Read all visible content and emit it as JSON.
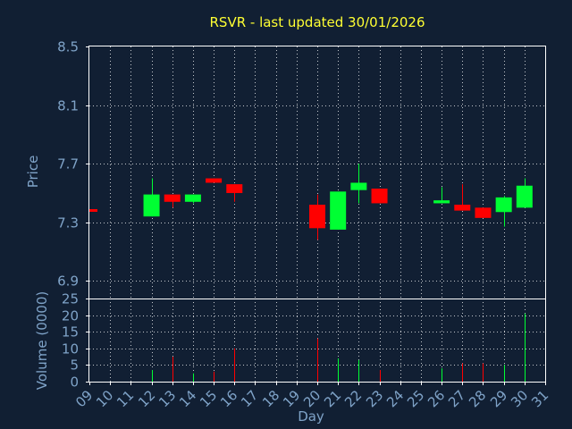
{
  "chart_data": {
    "type": "candlestick",
    "title": "RSVR - last updated 30/01/2026",
    "colors": {
      "up": "#00ff33",
      "down": "#ff0000",
      "background": "#111f33",
      "title": "#ffff33",
      "axis_text": "#7fa3c8",
      "frame": "#ffffff"
    },
    "price_panel": {
      "ylabel": "Price",
      "ylim": [
        6.78,
        8.5
      ],
      "yticks": [
        6.9,
        7.3,
        7.7,
        8.1,
        8.5
      ],
      "ytick_labels": [
        "6.9",
        "7.3",
        "7.7",
        "8.1",
        "8.5"
      ],
      "grid": true
    },
    "volume_panel": {
      "ylabel": "Volume (0000)",
      "ylim": [
        0,
        25
      ],
      "yticks": [
        0,
        5,
        10,
        15,
        20,
        25
      ],
      "ytick_labels": [
        "0",
        "5",
        "10",
        "15",
        "20",
        "25"
      ],
      "grid": true
    },
    "xlabel": "Day",
    "x_ticks": [
      "09",
      "10",
      "11",
      "12",
      "13",
      "14",
      "15",
      "16",
      "17",
      "18",
      "19",
      "20",
      "21",
      "22",
      "23",
      "24",
      "25",
      "26",
      "27",
      "28",
      "29",
      "30",
      "31"
    ],
    "candles": [
      {
        "day": "09",
        "open": 7.39,
        "high": 7.39,
        "low": 7.38,
        "close": 7.38,
        "volume": 0
      },
      {
        "day": "12",
        "open": 7.34,
        "high": 7.6,
        "low": 7.34,
        "close": 7.49,
        "volume": 3.5
      },
      {
        "day": "13",
        "open": 7.49,
        "high": 7.49,
        "low": 7.4,
        "close": 7.44,
        "volume": 7.5
      },
      {
        "day": "14",
        "open": 7.44,
        "high": 7.49,
        "low": 7.43,
        "close": 7.49,
        "volume": 2.5
      },
      {
        "day": "15",
        "open": 7.6,
        "high": 7.6,
        "low": 7.57,
        "close": 7.57,
        "volume": 3
      },
      {
        "day": "16",
        "open": 7.56,
        "high": 7.56,
        "low": 7.44,
        "close": 7.5,
        "volume": 10
      },
      {
        "day": "20",
        "open": 7.42,
        "high": 7.49,
        "low": 7.18,
        "close": 7.26,
        "volume": 13
      },
      {
        "day": "21",
        "open": 7.25,
        "high": 7.51,
        "low": 7.25,
        "close": 7.51,
        "volume": 7
      },
      {
        "day": "22",
        "open": 7.52,
        "high": 7.7,
        "low": 7.43,
        "close": 7.57,
        "volume": 6.5
      },
      {
        "day": "23",
        "open": 7.53,
        "high": 7.53,
        "low": 7.43,
        "close": 7.43,
        "volume": 3.5
      },
      {
        "day": "26",
        "open": 7.43,
        "high": 7.54,
        "low": 7.43,
        "close": 7.45,
        "volume": 4
      },
      {
        "day": "27",
        "open": 7.42,
        "high": 7.56,
        "low": 7.38,
        "close": 7.38,
        "volume": 5.5
      },
      {
        "day": "28",
        "open": 7.4,
        "high": 7.4,
        "low": 7.33,
        "close": 7.33,
        "volume": 5.5
      },
      {
        "day": "29",
        "open": 7.37,
        "high": 7.48,
        "low": 7.27,
        "close": 7.47,
        "volume": 5
      },
      {
        "day": "30",
        "open": 7.4,
        "high": 7.6,
        "low": 7.4,
        "close": 7.55,
        "volume": 20.5
      }
    ]
  }
}
